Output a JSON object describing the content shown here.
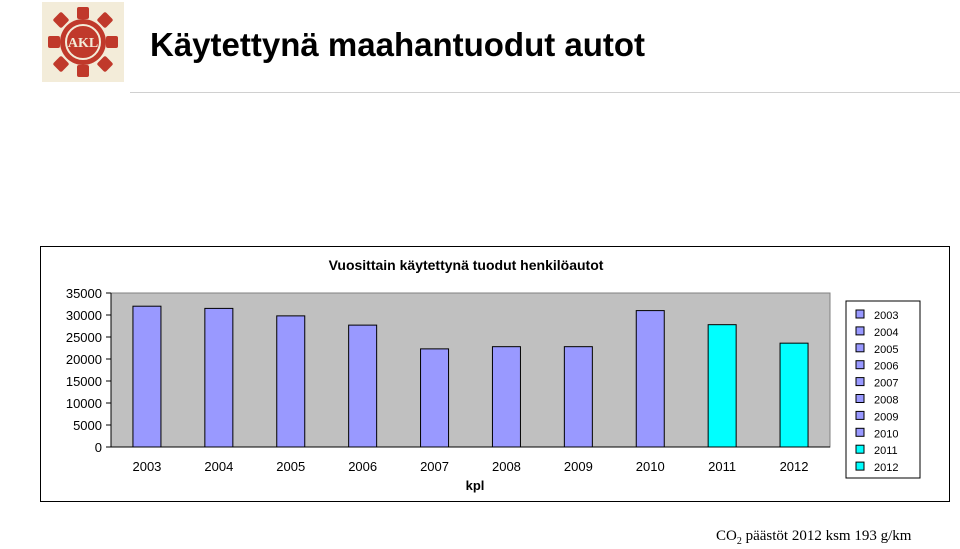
{
  "header": {
    "title": "Käytettynä maahantuodut autot",
    "logo_text": "AKL"
  },
  "footer": {
    "co2_prefix": "CO",
    "co2_sub": "2",
    "co2_text": " päästöt 2012 ksm 193 g/km"
  },
  "colors": {
    "series_main": "#9999ff",
    "series_highlight": "#00ffff",
    "plot_bg": "#c0c0c0",
    "logo_red": "#c0392b",
    "logo_bg": "#f3ecd9"
  },
  "chart_data": {
    "type": "bar",
    "title": "Vuosittain käytettynä tuodut henkilöautot",
    "xlabel": "kpl",
    "ylabel": "",
    "categories": [
      "2003",
      "2004",
      "2005",
      "2006",
      "2007",
      "2008",
      "2009",
      "2010",
      "2011",
      "2012"
    ],
    "values": [
      32000,
      31500,
      29800,
      27700,
      22300,
      22800,
      22800,
      31000,
      27800,
      23600
    ],
    "bar_colors": [
      "#9999ff",
      "#9999ff",
      "#9999ff",
      "#9999ff",
      "#9999ff",
      "#9999ff",
      "#9999ff",
      "#9999ff",
      "#00ffff",
      "#00ffff"
    ],
    "ylim": [
      0,
      35000
    ],
    "yticks": [
      "0",
      "5000",
      "10000",
      "15000",
      "20000",
      "25000",
      "30000",
      "35000"
    ],
    "legend": [
      "2003",
      "2004",
      "2005",
      "2006",
      "2007",
      "2008",
      "2009",
      "2010",
      "2011",
      "2012"
    ],
    "legend_position": "right",
    "grid": false
  }
}
